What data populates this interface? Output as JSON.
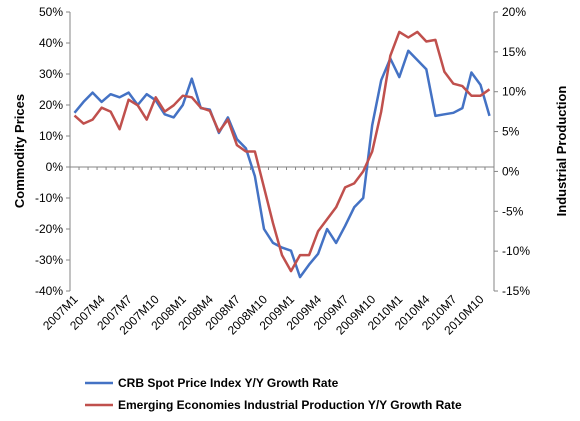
{
  "chart_data": {
    "type": "line",
    "ylabel_left": "Commodity Prices",
    "ylabel_right": "Industrial Production",
    "left_axis": {
      "ylim": [
        -40,
        50
      ],
      "ticks": [
        -40,
        -30,
        -20,
        -10,
        0,
        10,
        20,
        30,
        40,
        50
      ],
      "tick_labels": [
        "-40%",
        "-30%",
        "-20%",
        "-10%",
        "0%",
        "10%",
        "20%",
        "30%",
        "40%",
        "50%"
      ]
    },
    "right_axis": {
      "ylim": [
        -15,
        20
      ],
      "ticks": [
        -15,
        -10,
        -5,
        0,
        5,
        10,
        15,
        20
      ],
      "tick_labels": [
        "-15%",
        "-10%",
        "-5%",
        "0%",
        "5%",
        "10%",
        "15%",
        "20%"
      ]
    },
    "grid": false,
    "legend_position": "bottom",
    "x_tick_labels": [
      "2007M1",
      "2007M4",
      "2007M7",
      "2007M10",
      "2008M1",
      "2008M4",
      "2008M7",
      "2008M10",
      "2009M1",
      "2009M4",
      "2009M7",
      "2009M10",
      "2010M1",
      "2010M4",
      "2010M7",
      "2010M10"
    ],
    "x_tick_every": 3,
    "x": [
      "2007M1",
      "2007M2",
      "2007M3",
      "2007M4",
      "2007M5",
      "2007M6",
      "2007M7",
      "2007M8",
      "2007M9",
      "2007M10",
      "2007M11",
      "2007M12",
      "2008M1",
      "2008M2",
      "2008M3",
      "2008M4",
      "2008M5",
      "2008M6",
      "2008M7",
      "2008M8",
      "2008M9",
      "2008M10",
      "2008M11",
      "2008M12",
      "2009M1",
      "2009M2",
      "2009M3",
      "2009M4",
      "2009M5",
      "2009M6",
      "2009M7",
      "2009M8",
      "2009M9",
      "2009M10",
      "2009M11",
      "2009M12",
      "2010M1",
      "2010M2",
      "2010M3",
      "2010M4",
      "2010M5",
      "2010M6",
      "2010M7",
      "2010M8",
      "2010M9",
      "2010M10",
      "2010M11"
    ],
    "series": [
      {
        "name": "CRB Spot Price Index Y/Y Growth Rate",
        "axis": "left",
        "color": "#4472C4",
        "values": [
          17.5,
          21,
          24,
          21,
          23.5,
          22.5,
          24,
          20,
          23.5,
          21.5,
          17,
          16,
          20,
          28.5,
          19,
          18.5,
          11,
          16,
          9,
          6,
          -3,
          -20,
          -24.5,
          -26,
          -27,
          -35.5,
          -31.5,
          -28,
          -20,
          -24.5,
          -19,
          -13,
          -10,
          13.5,
          28,
          35,
          29,
          37.5,
          34.5,
          31.5,
          16.5,
          17,
          17.5,
          19,
          30.5,
          26.5,
          16.5
        ]
      },
      {
        "name": "Emerging Economies Industrial Production Y/Y Growth Rate",
        "axis": "right",
        "color": "#C0504D",
        "values": [
          7,
          6,
          6.5,
          8,
          7.5,
          5.3,
          9,
          8.3,
          6.5,
          9.3,
          7.5,
          8.3,
          9.5,
          9.3,
          8,
          7.6,
          5,
          6.5,
          3.3,
          2.5,
          2.5,
          -2,
          -6.5,
          -10.5,
          -12.5,
          -10.5,
          -10.5,
          -7.5,
          -6,
          -4.5,
          -2,
          -1.5,
          0,
          2.5,
          7.5,
          14.5,
          17.5,
          16.8,
          17.5,
          16.3,
          16.5,
          12.5,
          11,
          10.7,
          9.5,
          9.5,
          10.3
        ]
      }
    ]
  }
}
